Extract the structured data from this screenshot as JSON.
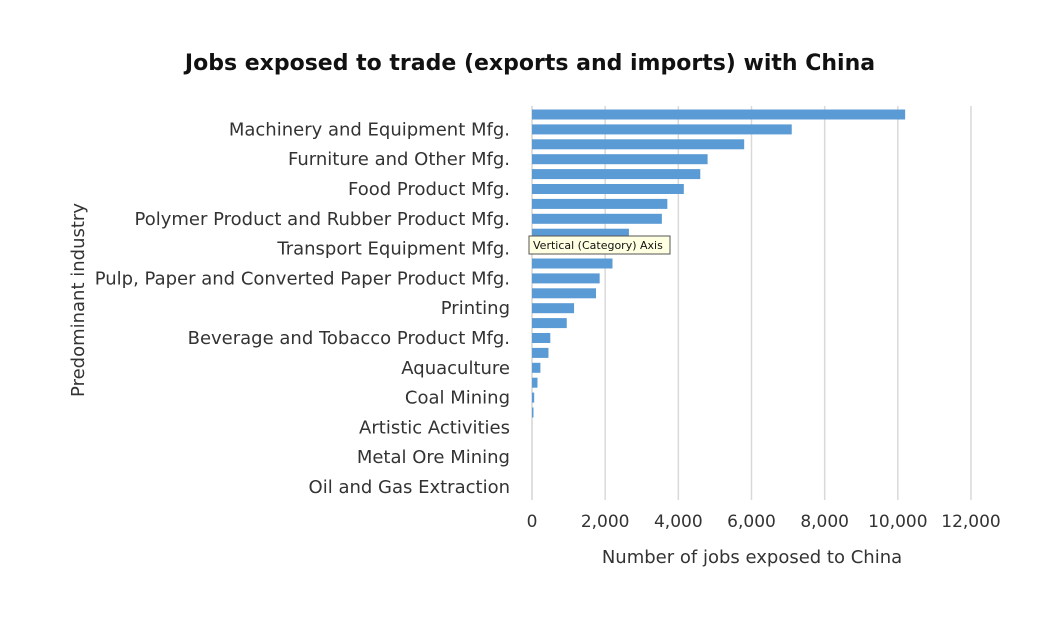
{
  "chart_data": {
    "type": "bar",
    "orientation": "horizontal",
    "title": "Jobs exposed to trade (exports and imports) with China",
    "xlabel": "Number of jobs exposed to China",
    "ylabel": "Predominant industry",
    "xlim": [
      0,
      12000
    ],
    "xticks": [
      "0",
      "2,000",
      "4,000",
      "6,000",
      "8,000",
      "10,000",
      "12,000"
    ],
    "xtick_values": [
      0,
      2000,
      4000,
      6000,
      8000,
      10000,
      12000
    ],
    "grid": "vertical",
    "bar_color": "#5b9bd5",
    "visible_category_labels": [
      "Machinery and Equipment Mfg.",
      "Furniture and Other Mfg.",
      "Food Product Mfg.",
      "Polymer Product and Rubber Product Mfg.",
      "Transport Equipment Mfg.",
      "Pulp, Paper and Converted Paper Product Mfg.",
      "Printing",
      "Beverage and Tobacco Product Mfg.",
      "Aquaculture",
      "Coal Mining",
      "Artistic Activities",
      "Metal Ore Mining",
      "Oil and Gas Extraction"
    ],
    "values": [
      10200,
      7100,
      5800,
      4800,
      4600,
      4150,
      3700,
      3550,
      2650,
      2450,
      2200,
      1850,
      1750,
      1150,
      950,
      500,
      450,
      230,
      150,
      60,
      40,
      0,
      0,
      0,
      0,
      0
    ]
  },
  "tooltip": {
    "text": "Vertical (Category) Axis"
  }
}
